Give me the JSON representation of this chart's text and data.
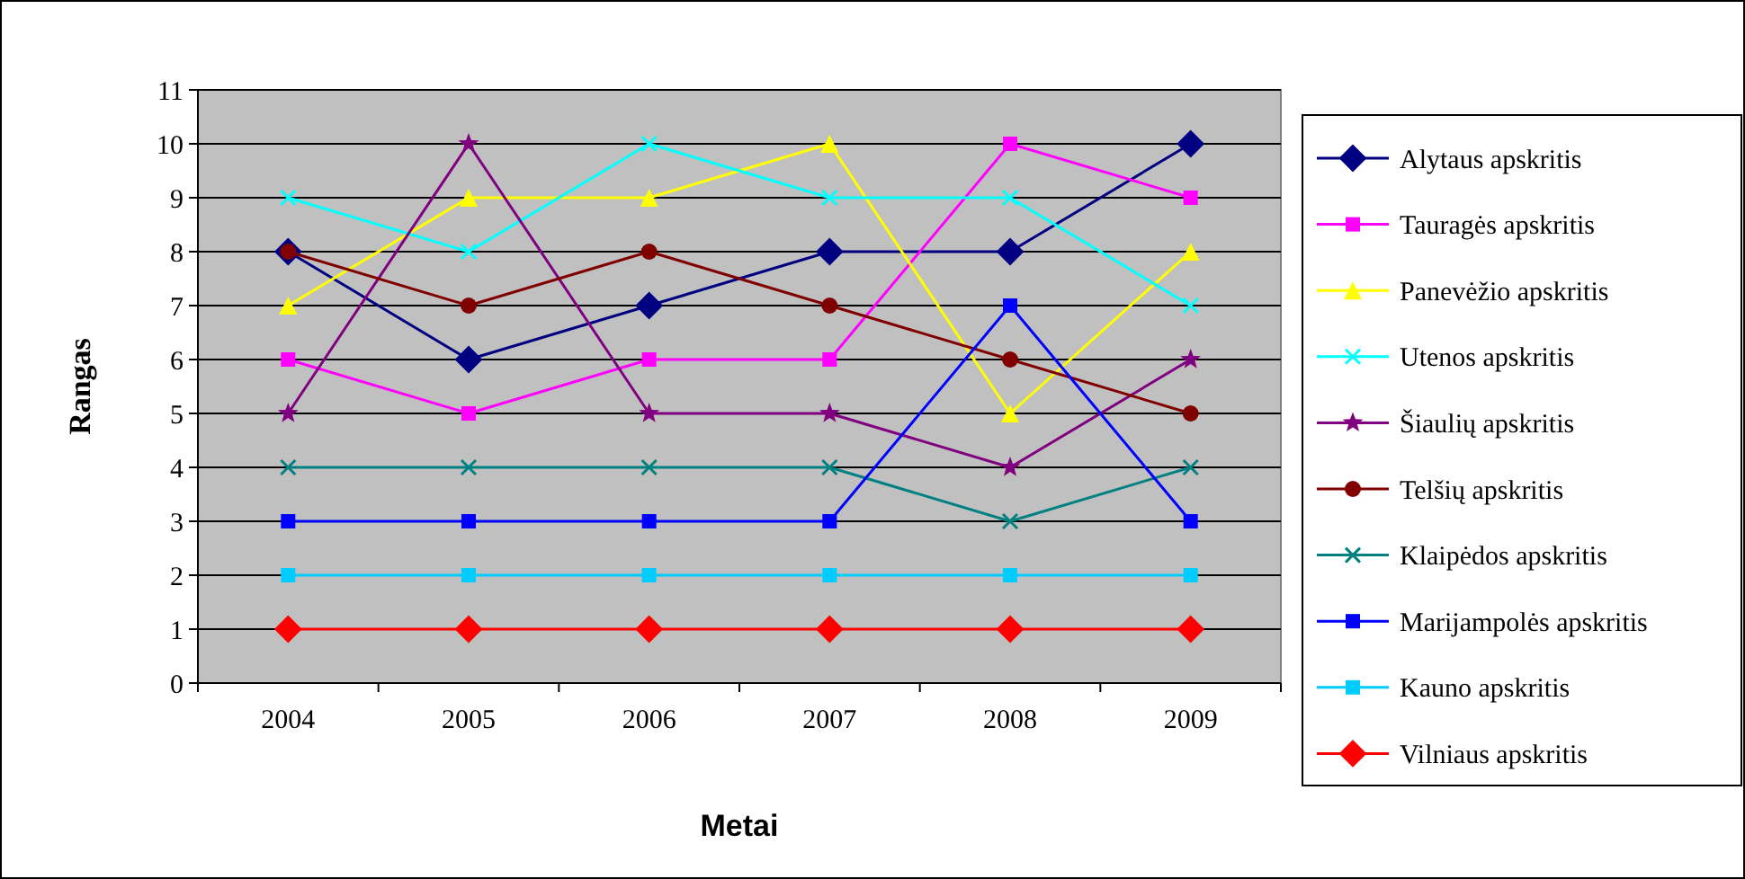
{
  "chart_data": {
    "type": "line",
    "xlabel": "Metai",
    "ylabel": "Rangas",
    "categories": [
      "2004",
      "2005",
      "2006",
      "2007",
      "2008",
      "2009"
    ],
    "ylim": [
      0,
      11
    ],
    "yticks": [
      0,
      1,
      2,
      3,
      4,
      5,
      6,
      7,
      8,
      9,
      10,
      11
    ],
    "grid": "y",
    "legend": "right",
    "line_style": "solid",
    "series": [
      {
        "name": "Alytaus apskritis",
        "color": "#000080",
        "marker": "diamond",
        "values": [
          8,
          6,
          7,
          8,
          8,
          10
        ]
      },
      {
        "name": "Tauragės apskritis",
        "color": "#ff00ff",
        "marker": "square",
        "values": [
          6,
          5,
          6,
          6,
          10,
          9
        ]
      },
      {
        "name": "Panevėžio apskritis",
        "color": "#ffff00",
        "marker": "triangle",
        "values": [
          7,
          9,
          9,
          10,
          5,
          8
        ]
      },
      {
        "name": "Utenos apskritis",
        "color": "#00ffff",
        "marker": "cross",
        "values": [
          9,
          8,
          10,
          9,
          9,
          7
        ]
      },
      {
        "name": "Šiaulių apskritis",
        "color": "#800080",
        "marker": "star",
        "values": [
          5,
          10,
          5,
          5,
          4,
          6
        ]
      },
      {
        "name": "Telšių apskritis",
        "color": "#800000",
        "marker": "circle",
        "values": [
          8,
          7,
          8,
          7,
          6,
          5
        ]
      },
      {
        "name": "Klaipėdos apskritis",
        "color": "#008080",
        "marker": "cross",
        "values": [
          4,
          4,
          4,
          4,
          3,
          4
        ]
      },
      {
        "name": "Marijampolės apskritis",
        "color": "#0000ff",
        "marker": "square",
        "values": [
          3,
          3,
          3,
          3,
          7,
          3
        ]
      },
      {
        "name": "Kauno apskritis",
        "color": "#00ccff",
        "marker": "square",
        "values": [
          2,
          2,
          2,
          2,
          2,
          2
        ]
      },
      {
        "name": "Vilniaus apskritis",
        "color": "#ff0000",
        "marker": "diamond",
        "values": [
          1,
          1,
          1,
          1,
          1,
          1
        ]
      }
    ]
  }
}
